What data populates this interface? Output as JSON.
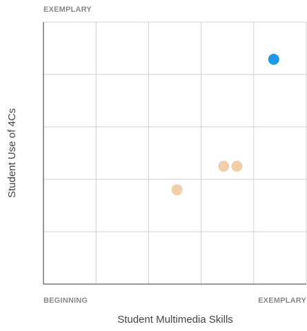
{
  "chart_data": {
    "type": "scatter",
    "x_axis_label": "Student Multimedia Skills",
    "y_axis_label": "Student Use of 4Cs",
    "x_start_label": "BEGINNING",
    "x_end_label": "EXEMPLARY",
    "y_end_label": "EXEMPLARY",
    "xlim": [
      0,
      5
    ],
    "ylim": [
      0,
      5
    ],
    "xgrid": [
      0,
      1,
      2,
      3,
      4,
      5
    ],
    "ygrid": [
      0,
      1,
      2,
      3,
      4,
      5
    ],
    "series": [
      {
        "color": "#1a9be6",
        "x": [
          4.38
        ],
        "y": [
          4.29
        ]
      },
      {
        "color": "#f2cfa6",
        "x": [
          3.43,
          3.68,
          2.54
        ],
        "y": [
          2.25,
          2.25,
          1.8
        ]
      }
    ]
  }
}
